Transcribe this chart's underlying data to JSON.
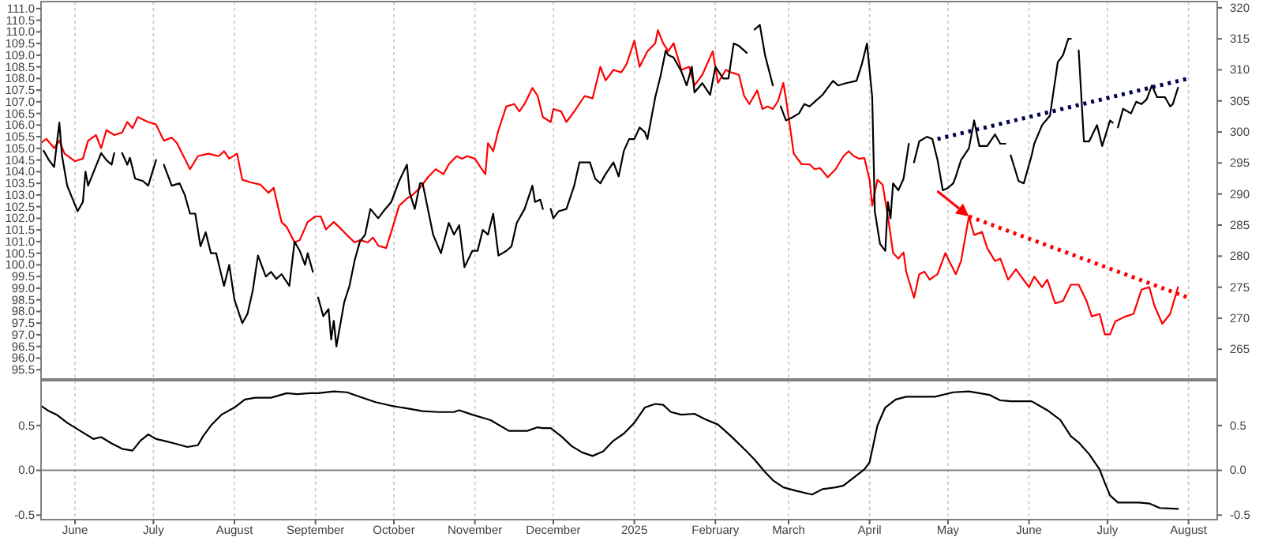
{
  "chart_data": [
    {
      "type": "line",
      "grid": "x",
      "tick_labels": "y",
      "xlim": [
        "2024-05-19",
        "2025-08-12"
      ],
      "ylim": [
        95.1,
        111.3
      ],
      "yticks": [
        95.5,
        {
          "value": 96,
          "label": "96.0"
        },
        96.5,
        {
          "value": 97,
          "label": "97.0"
        },
        97.5,
        {
          "value": 98,
          "label": "98.0"
        },
        98.5,
        {
          "value": 99,
          "label": "99.0"
        },
        99.5,
        {
          "value": 100,
          "label": "100.0"
        },
        100.5,
        {
          "value": 101,
          "label": "101.0"
        },
        101.5,
        {
          "value": 102,
          "label": "102.0"
        },
        102.5,
        {
          "value": 103,
          "label": "103.0"
        },
        103.5,
        {
          "value": 104,
          "label": "104.0"
        },
        104.5,
        {
          "value": 105,
          "label": "105.0"
        },
        105.5,
        {
          "value": 106,
          "label": "106.0"
        },
        106.5,
        {
          "value": 107,
          "label": "107.0"
        },
        107.5,
        {
          "value": 108,
          "label": "108.0"
        },
        108.5,
        {
          "value": 109,
          "label": "109.0"
        },
        109.5,
        {
          "value": 110,
          "label": "110.0"
        },
        110.5,
        {
          "value": 111,
          "label": "111.0"
        }
      ],
      "y2lim": [
        260.2,
        321
      ],
      "y2ticks": [
        265,
        270,
        275,
        280,
        285,
        290,
        295,
        300,
        305,
        310,
        315,
        320
      ],
      "series": [
        {
          "color": "#000000",
          "axis": "y",
          "x": [
            "2024-05-20",
            "2024-05-22",
            "2024-05-24",
            "2024-05-26",
            "2024-05-27",
            "2024-05-29",
            "2024-06-02",
            "2024-06-04",
            "2024-06-05",
            "2024-06-06",
            "2024-06-11",
            "2024-06-13",
            "2024-06-15",
            "2024-06-16",
            "2024-06-18",
            "2024-06-19",
            "2024-06-21",
            "2024-06-22",
            "2024-06-24",
            "2024-06-27",
            "2024-06-29",
            "2024-07-02",
            "2024-07-03",
            "2024-07-05",
            "2024-07-08",
            "2024-07-11",
            "2024-07-13",
            "2024-07-15",
            "2024-07-17",
            "2024-07-19",
            "2024-07-21",
            "2024-07-23",
            "2024-07-25",
            "2024-07-28",
            "2024-07-30",
            "2024-08-01",
            "2024-08-04",
            "2024-08-06",
            "2024-08-08",
            "2024-08-10",
            "2024-08-13",
            "2024-08-15",
            "2024-08-17",
            "2024-08-19",
            "2024-08-22",
            "2024-08-24",
            "2024-08-26",
            "2024-08-28",
            "2024-08-29",
            "2024-08-31",
            "2024-09-01",
            "2024-09-02",
            "2024-09-04",
            "2024-09-06",
            "2024-09-07",
            "2024-09-08",
            "2024-09-09",
            "2024-09-12",
            "2024-09-14",
            "2024-09-16",
            "2024-09-18",
            "2024-09-20",
            "2024-09-22",
            "2024-09-25",
            "2024-09-27",
            "2024-09-30",
            "2024-10-03",
            "2024-10-06",
            "2024-10-07",
            "2024-10-09",
            "2024-10-11",
            "2024-10-12",
            "2024-10-14",
            "2024-10-16",
            "2024-10-19",
            "2024-10-22",
            "2024-10-24",
            "2024-10-26",
            "2024-10-28",
            "2024-10-31",
            "2024-11-02",
            "2024-11-04",
            "2024-11-06",
            "2024-11-08",
            "2024-11-10",
            "2024-11-13",
            "2024-11-15",
            "2024-11-17",
            "2024-11-20",
            "2024-11-23",
            "2024-11-24",
            "2024-11-26",
            "2024-11-27",
            "2024-11-29",
            "2024-11-30",
            "2024-12-01",
            "2024-12-03",
            "2024-12-06",
            "2024-12-09",
            "2024-12-11",
            "2024-12-15",
            "2024-12-17",
            "2024-12-19",
            "2024-12-21",
            "2024-12-24",
            "2024-12-26",
            "2024-12-28",
            "2024-12-30",
            "2025-01-01",
            "2025-01-03",
            "2025-01-05",
            "2025-01-06",
            "2025-01-09",
            "2025-01-11",
            "2025-01-13",
            "2025-01-14",
            "2025-01-16",
            "2025-01-19",
            "2025-01-21",
            "2025-01-23",
            "2025-01-24",
            "2025-01-27",
            "2025-01-30",
            "2025-02-01",
            "2025-02-04",
            "2025-02-06",
            "2025-02-08",
            "2025-02-10",
            "2025-02-13",
            "2025-02-15",
            "2025-02-16",
            "2025-02-18",
            "2025-02-20",
            "2025-02-23",
            "2025-02-25",
            "2025-02-26",
            "2025-02-28",
            "2025-03-02",
            "2025-03-05",
            "2025-03-07",
            "2025-03-09",
            "2025-03-11",
            "2025-03-14",
            "2025-03-16",
            "2025-03-18",
            "2025-03-20",
            "2025-03-23",
            "2025-03-27",
            "2025-03-29",
            "2025-03-31",
            "2025-04-02",
            "2025-04-03",
            "2025-04-05",
            "2025-04-07",
            "2025-04-08",
            "2025-04-09",
            "2025-04-10",
            "2025-04-12",
            "2025-04-14",
            "2025-04-16",
            "2025-04-17",
            "2025-04-18",
            "2025-04-20",
            "2025-04-23",
            "2025-04-25",
            "2025-04-27",
            "2025-04-29",
            "2025-05-01",
            "2025-05-03",
            "2025-05-04",
            "2025-05-06",
            "2025-05-09",
            "2025-05-11",
            "2025-05-13",
            "2025-05-16",
            "2025-05-19",
            "2025-05-21",
            "2025-05-23",
            "2025-05-24",
            "2025-05-25",
            "2025-05-28",
            "2025-05-30",
            "2025-06-02",
            "2025-06-03",
            "2025-06-06",
            "2025-06-09",
            "2025-06-12",
            "2025-06-14",
            "2025-06-16",
            "2025-06-17",
            "2025-06-19",
            "2025-06-20",
            "2025-06-22",
            "2025-06-24",
            "2025-06-27",
            "2025-06-29",
            "2025-07-02",
            "2025-07-03",
            "2025-07-04",
            "2025-07-05",
            "2025-07-07",
            "2025-07-10",
            "2025-07-12",
            "2025-07-14",
            "2025-07-16",
            "2025-07-18",
            "2025-07-20",
            "2025-07-23",
            "2025-07-25",
            "2025-07-26",
            "2025-07-28"
          ],
          "values": [
            104.9,
            104.5,
            104.2,
            106.1,
            104.7,
            103.4,
            102.3,
            102.7,
            104.0,
            103.4,
            104.8,
            104.5,
            104.3,
            104.8,
            null,
            104.8,
            104.3,
            104.6,
            103.7,
            103.6,
            103.4,
            104.5,
            null,
            104.3,
            103.4,
            103.5,
            103.0,
            102.2,
            102.2,
            100.8,
            101.4,
            100.5,
            100.5,
            99.1,
            100.0,
            98.5,
            97.5,
            97.9,
            98.9,
            100.4,
            99.5,
            99.7,
            99.4,
            99.6,
            99.1,
            101.0,
            100.6,
            100.0,
            100.5,
            99.7,
            null,
            98.6,
            97.8,
            98.1,
            96.8,
            97.6,
            96.5,
            98.4,
            99.1,
            100.2,
            101.0,
            101.3,
            102.4,
            102.0,
            102.3,
            102.7,
            103.6,
            104.3,
            103.1,
            102.4,
            103.5,
            103.5,
            102.4,
            101.3,
            100.5,
            101.8,
            101.3,
            101.7,
            99.9,
            100.6,
            100.6,
            101.5,
            101.3,
            102.2,
            100.4,
            100.6,
            100.8,
            101.8,
            102.4,
            103.4,
            102.7,
            102.8,
            102.4,
            null,
            102.4,
            102.0,
            102.3,
            102.4,
            103.4,
            104.4,
            104.4,
            103.7,
            103.5,
            103.9,
            104.4,
            103.8,
            104.9,
            105.4,
            105.4,
            105.9,
            105.7,
            105.4,
            107.2,
            108.1,
            109.2,
            109.0,
            108.9,
            108.3,
            107.7,
            108.5,
            107.4,
            107.8,
            107.3,
            108.5,
            108.0,
            108.0,
            109.5,
            109.4,
            109.1,
            null,
            110.1,
            110.3,
            109.0,
            107.7,
            null,
            106.8,
            106.2,
            106.3,
            106.5,
            106.9,
            106.8,
            107.0,
            107.3,
            107.6,
            107.9,
            107.7,
            107.8,
            107.9,
            108.6,
            109.5,
            107.2,
            102.3,
            100.9,
            100.6,
            102.7,
            102.0,
            103.5,
            103.2,
            103.7,
            105.2,
            null,
            104.4,
            105.3,
            105.5,
            105.4,
            104.5,
            103.2,
            103.3,
            103.5,
            103.8,
            104.5,
            105.0,
            106.2,
            105.1,
            105.1,
            105.6,
            105.2,
            105.2,
            null,
            104.7,
            103.6,
            103.5,
            104.7,
            105.2,
            106.0,
            106.4,
            108.7,
            109.0,
            109.7,
            109.7,
            null,
            109.2,
            105.3,
            105.3,
            106.0,
            105.1,
            106.2,
            106.1,
            null,
            105.9,
            106.7,
            106.5,
            107.0,
            106.9,
            107.1,
            107.7,
            107.2,
            107.2,
            106.8,
            106.9,
            107.6
          ]
        },
        {
          "color": "#ff0000",
          "axis": "y2",
          "x": [
            "2024-05-19",
            "2024-05-21",
            "2024-05-24",
            "2024-05-26",
            "2024-05-28",
            "2024-06-01",
            "2024-06-04",
            "2024-06-06",
            "2024-06-09",
            "2024-06-11",
            "2024-06-13",
            "2024-06-16",
            "2024-06-19",
            "2024-06-21",
            "2024-06-23",
            "2024-06-25",
            "2024-06-29",
            "2024-07-02",
            "2024-07-05",
            "2024-07-08",
            "2024-07-10",
            "2024-07-13",
            "2024-07-15",
            "2024-07-18",
            "2024-07-22",
            "2024-07-26",
            "2024-07-28",
            "2024-07-30",
            "2024-08-02",
            "2024-08-04",
            "2024-08-07",
            "2024-08-11",
            "2024-08-14",
            "2024-08-16",
            "2024-08-19",
            "2024-08-21",
            "2024-08-24",
            "2024-08-26",
            "2024-08-29",
            "2024-09-01",
            "2024-09-03",
            "2024-09-05",
            "2024-09-08",
            "2024-09-10",
            "2024-09-13",
            "2024-09-16",
            "2024-09-18",
            "2024-09-21",
            "2024-09-23",
            "2024-09-25",
            "2024-09-28",
            "2024-09-30",
            "2024-10-03",
            "2024-10-06",
            "2024-10-08",
            "2024-10-11",
            "2024-10-14",
            "2024-10-17",
            "2024-10-20",
            "2024-10-22",
            "2024-10-25",
            "2024-10-27",
            "2024-10-29",
            "2024-11-01",
            "2024-11-03",
            "2024-11-05",
            "2024-11-06",
            "2024-11-08",
            "2024-11-10",
            "2024-11-13",
            "2024-11-16",
            "2024-11-18",
            "2024-11-20",
            "2024-11-23",
            "2024-11-25",
            "2024-11-27",
            "2024-11-30",
            "2024-12-01",
            "2024-12-04",
            "2024-12-06",
            "2024-12-09",
            "2024-12-13",
            "2024-12-16",
            "2024-12-19",
            "2024-12-21",
            "2024-12-24",
            "2024-12-27",
            "2024-12-29",
            "2025-01-01",
            "2025-01-03",
            "2025-01-06",
            "2025-01-09",
            "2025-01-10",
            "2025-01-12",
            "2025-01-14",
            "2025-01-16",
            "2025-01-19",
            "2025-01-22",
            "2025-01-24",
            "2025-01-27",
            "2025-01-31",
            "2025-02-02",
            "2025-02-05",
            "2025-02-07",
            "2025-02-10",
            "2025-02-12",
            "2025-02-14",
            "2025-02-17",
            "2025-02-19",
            "2025-02-21",
            "2025-02-23",
            "2025-02-25",
            "2025-02-27",
            "2025-02-28",
            "2025-03-03",
            "2025-03-06",
            "2025-03-09",
            "2025-03-11",
            "2025-03-13",
            "2025-03-16",
            "2025-03-19",
            "2025-03-22",
            "2025-03-24",
            "2025-03-26",
            "2025-03-28",
            "2025-03-30",
            "2025-04-01",
            "2025-04-02",
            "2025-04-04",
            "2025-04-06",
            "2025-04-08",
            "2025-04-10",
            "2025-04-12",
            "2025-04-14",
            "2025-04-15",
            "2025-04-18",
            "2025-04-20",
            "2025-04-22",
            "2025-04-24",
            "2025-04-27",
            "2025-04-30",
            "2025-05-01",
            "2025-05-04",
            "2025-05-06",
            "2025-05-09",
            "2025-05-11",
            "2025-05-14",
            "2025-05-16",
            "2025-05-19",
            "2025-05-21",
            "2025-05-24",
            "2025-05-27",
            "2025-05-29",
            "2025-06-01",
            "2025-06-03",
            "2025-06-06",
            "2025-06-08",
            "2025-06-11",
            "2025-06-14",
            "2025-06-17",
            "2025-06-20",
            "2025-06-23",
            "2025-06-25",
            "2025-06-28",
            "2025-06-30",
            "2025-07-02",
            "2025-07-04",
            "2025-07-08",
            "2025-07-11",
            "2025-07-14",
            "2025-07-17",
            "2025-07-19",
            "2025-07-22",
            "2025-07-25",
            "2025-07-28"
          ],
          "values": [
            298.2,
            298.9,
            297.4,
            298.6,
            296.5,
            295.3,
            295.7,
            298.6,
            299.5,
            297.4,
            300.3,
            299.5,
            299.9,
            301.6,
            300.6,
            302.4,
            301.6,
            301.2,
            298.6,
            299.1,
            298.2,
            295.7,
            294.0,
            296.1,
            296.5,
            296.1,
            296.9,
            295.7,
            296.5,
            292.3,
            291.9,
            291.5,
            290.2,
            291.0,
            285.5,
            284.7,
            282.2,
            282.6,
            285.5,
            286.4,
            286.4,
            284.3,
            285.5,
            284.7,
            283.4,
            282.2,
            282.6,
            282.2,
            283.0,
            281.7,
            281.3,
            283.9,
            288.1,
            289.3,
            289.8,
            291.0,
            292.7,
            294.0,
            293.2,
            294.8,
            296.1,
            295.7,
            296.1,
            295.7,
            294.4,
            293.2,
            298.2,
            296.9,
            300.3,
            304.1,
            304.5,
            303.3,
            304.5,
            307.1,
            305.8,
            302.4,
            301.6,
            303.7,
            303.3,
            301.6,
            303.3,
            305.8,
            305.4,
            310.5,
            308.3,
            310.0,
            309.6,
            310.9,
            314.7,
            310.5,
            313.0,
            314.3,
            316.4,
            314.3,
            313.0,
            314.3,
            310.0,
            310.5,
            307.5,
            309.2,
            313.0,
            307.9,
            310.0,
            309.6,
            309.2,
            305.8,
            304.5,
            306.7,
            303.7,
            304.1,
            303.7,
            305.0,
            307.9,
            305.4,
            296.5,
            294.8,
            294.8,
            294.0,
            294.2,
            292.7,
            294.0,
            296.1,
            296.9,
            296.1,
            295.7,
            295.8,
            292.3,
            288.1,
            292.3,
            291.5,
            286.4,
            280.5,
            279.6,
            280.6,
            277.5,
            273.3,
            277.1,
            277.5,
            276.2,
            277.1,
            280.5,
            279.6,
            277.1,
            279.2,
            286.4,
            283.4,
            283.9,
            281.3,
            279.2,
            279.6,
            276.2,
            277.9,
            276.7,
            275.0,
            276.7,
            275.0,
            276.2,
            272.4,
            272.8,
            275.4,
            275.4,
            272.8,
            270.3,
            270.7,
            267.4,
            267.4,
            269.5,
            270.3,
            270.7,
            274.6,
            275.0,
            272.0,
            269.1,
            270.7,
            275.0
          ]
        },
        {
          "color": "#000050",
          "axis": "y",
          "line_style": "dotted",
          "x": [
            "2025-04-27",
            "2025-08-01"
          ],
          "values": [
            105.4,
            108.0
          ]
        },
        {
          "color": "#ff0000",
          "axis": "y2",
          "line_style": "dotted",
          "x": [
            "2025-05-09",
            "2025-08-01"
          ],
          "values": [
            286.4,
            273.3
          ]
        }
      ]
    },
    {
      "type": "line",
      "grid": "x",
      "xlim": [
        "2024-05-19",
        "2025-08-12"
      ],
      "xticks": [
        {
          "value": "2024-06-01",
          "label": "June"
        },
        {
          "value": "2024-07-01",
          "label": "July"
        },
        {
          "value": "2024-08-01",
          "label": "August"
        },
        {
          "value": "2024-09-01",
          "label": "September"
        },
        {
          "value": "2024-10-01",
          "label": "October"
        },
        {
          "value": "2024-11-01",
          "label": "November"
        },
        {
          "value": "2024-12-01",
          "label": "December"
        },
        {
          "value": "2025-01-01",
          "label": "2025"
        },
        {
          "value": "2025-02-01",
          "label": "February"
        },
        {
          "value": "2025-03-01",
          "label": "March"
        },
        {
          "value": "2025-04-01",
          "label": "April"
        },
        {
          "value": "2025-05-01",
          "label": "May"
        },
        {
          "value": "2025-06-01",
          "label": "June"
        },
        {
          "value": "2025-07-01",
          "label": "July"
        },
        {
          "value": "2025-08-01",
          "label": "August"
        }
      ],
      "ylim": [
        -0.55,
        1.0
      ],
      "yticks": [
        -0.5,
        {
          "value": 0,
          "label": "0.0"
        },
        0.5
      ],
      "y2lim": [
        -0.55,
        1.0
      ],
      "y2ticks": [
        -0.5,
        {
          "value": 0,
          "label": "0.0"
        },
        0.5
      ],
      "ref_lines": [
        {
          "axis": "y",
          "value": 0,
          "color": "#808080"
        }
      ],
      "series": [
        {
          "color": "#000000",
          "x": [
            "2024-05-19",
            "2024-05-22",
            "2024-05-25",
            "2024-05-29",
            "2024-06-03",
            "2024-06-08",
            "2024-06-11",
            "2024-06-15",
            "2024-06-19",
            "2024-06-23",
            "2024-06-26",
            "2024-06-29",
            "2024-07-02",
            "2024-07-05",
            "2024-07-09",
            "2024-07-14",
            "2024-07-18",
            "2024-07-20",
            "2024-07-23",
            "2024-07-27",
            "2024-08-01",
            "2024-08-05",
            "2024-08-09",
            "2024-08-15",
            "2024-08-21",
            "2024-08-25",
            "2024-08-30",
            "2024-09-02",
            "2024-09-08",
            "2024-09-13",
            "2024-09-18",
            "2024-09-24",
            "2024-09-30",
            "2024-10-06",
            "2024-10-12",
            "2024-10-18",
            "2024-10-24",
            "2024-10-26",
            "2024-10-31",
            "2024-11-07",
            "2024-11-14",
            "2024-11-21",
            "2024-11-25",
            "2024-11-27",
            "2024-11-30",
            "2024-12-04",
            "2024-12-08",
            "2024-12-12",
            "2024-12-16",
            "2024-12-20",
            "2024-12-24",
            "2024-12-28",
            "2025-01-01",
            "2025-01-05",
            "2025-01-09",
            "2025-01-12",
            "2025-01-15",
            "2025-01-19",
            "2025-01-24",
            "2025-01-28",
            "2025-02-02",
            "2025-02-07",
            "2025-02-13",
            "2025-02-16",
            "2025-02-20",
            "2025-02-23",
            "2025-02-27",
            "2025-03-04",
            "2025-03-10",
            "2025-03-14",
            "2025-03-19",
            "2025-03-22",
            "2025-03-26",
            "2025-03-30",
            "2025-04-01",
            "2025-04-04",
            "2025-04-07",
            "2025-04-11",
            "2025-04-15",
            "2025-04-19",
            "2025-04-26",
            "2025-05-03",
            "2025-05-09",
            "2025-05-17",
            "2025-05-21",
            "2025-05-25",
            "2025-06-02",
            "2025-06-08",
            "2025-06-13",
            "2025-06-17",
            "2025-06-20",
            "2025-06-24",
            "2025-06-28",
            "2025-06-30",
            "2025-07-02",
            "2025-07-05",
            "2025-07-13",
            "2025-07-17",
            "2025-07-21",
            "2025-07-28"
          ],
          "values": [
            0.72,
            0.66,
            0.62,
            0.53,
            0.44,
            0.35,
            0.37,
            0.3,
            0.24,
            0.22,
            0.33,
            0.4,
            0.35,
            0.33,
            0.3,
            0.26,
            0.28,
            0.38,
            0.5,
            0.62,
            0.7,
            0.79,
            0.81,
            0.81,
            0.86,
            0.85,
            0.86,
            0.86,
            0.88,
            0.87,
            0.82,
            0.76,
            0.72,
            0.69,
            0.66,
            0.65,
            0.65,
            0.67,
            0.62,
            0.56,
            0.44,
            0.44,
            0.48,
            0.47,
            0.47,
            0.38,
            0.27,
            0.2,
            0.16,
            0.21,
            0.33,
            0.41,
            0.53,
            0.7,
            0.74,
            0.73,
            0.65,
            0.62,
            0.63,
            0.57,
            0.51,
            0.38,
            0.21,
            0.12,
            -0.02,
            -0.11,
            -0.19,
            -0.23,
            -0.27,
            -0.21,
            -0.19,
            -0.17,
            -0.08,
            0.01,
            0.09,
            0.5,
            0.7,
            0.79,
            0.82,
            0.82,
            0.82,
            0.87,
            0.88,
            0.84,
            0.78,
            0.77,
            0.77,
            0.67,
            0.56,
            0.38,
            0.31,
            0.18,
            0.01,
            -0.14,
            -0.28,
            -0.36,
            -0.36,
            -0.37,
            -0.42,
            -0.43
          ]
        }
      ]
    }
  ]
}
